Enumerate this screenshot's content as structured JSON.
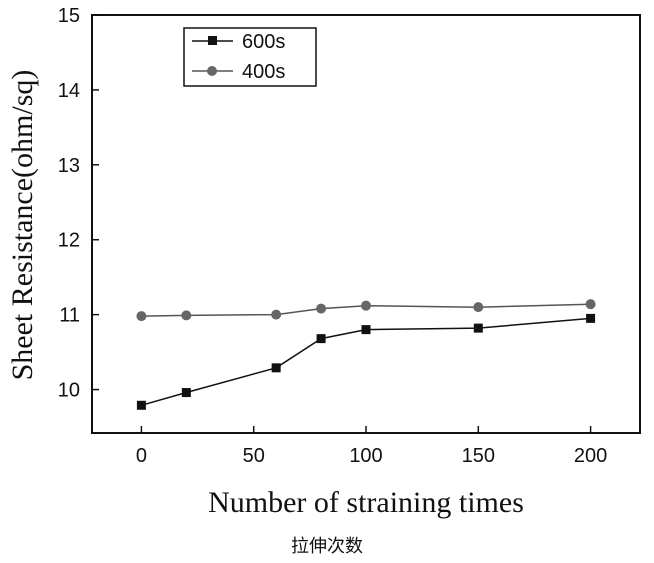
{
  "chart_data": {
    "type": "line",
    "xlabel": "Number of straining times",
    "ylabel": "Sheet Resistance(ohm/sq)",
    "xlim": [
      -22,
      222
    ],
    "ylim": [
      9.42,
      15
    ],
    "x_ticks": [
      0,
      50,
      100,
      150,
      200
    ],
    "y_ticks": [
      10,
      11,
      12,
      13,
      14,
      15
    ],
    "grid": false,
    "legend_position": "top-left",
    "series": [
      {
        "name": "600s",
        "marker": "square",
        "color": "#111111",
        "x": [
          0,
          20,
          60,
          80,
          100,
          150,
          200
        ],
        "y": [
          9.79,
          9.96,
          10.29,
          10.68,
          10.8,
          10.82,
          10.95
        ]
      },
      {
        "name": "400s",
        "marker": "circle",
        "color": "#555555",
        "x": [
          0,
          20,
          60,
          80,
          100,
          150,
          200
        ],
        "y": [
          10.98,
          10.99,
          11.0,
          11.08,
          11.12,
          11.1,
          11.14
        ]
      }
    ]
  },
  "caption": "拉伸次数"
}
